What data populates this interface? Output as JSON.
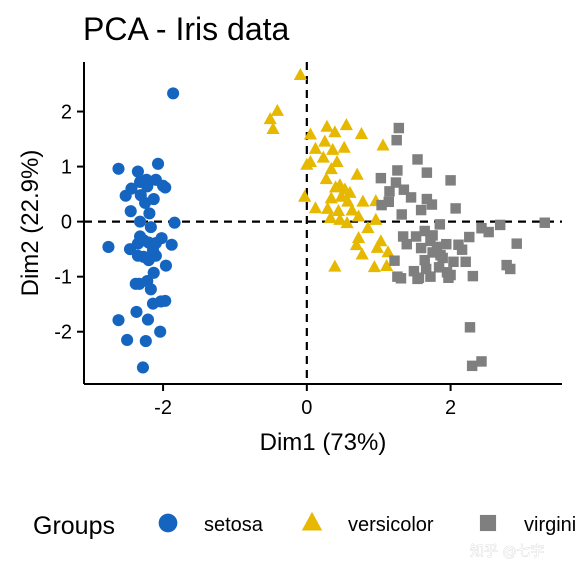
{
  "chart_data": {
    "type": "scatter",
    "title": "PCA - Iris data",
    "xlabel": "Dim1 (73%)",
    "ylabel": "Dim2 (22.9%)",
    "xlim": [
      -3.1,
      3.55
    ],
    "ylim": [
      -2.95,
      2.9
    ],
    "x_ticks": [
      -2,
      0,
      2
    ],
    "y_ticks": [
      -2,
      -1,
      0,
      1,
      2
    ],
    "x_tick_labels": [
      "-2",
      "0",
      "2"
    ],
    "y_tick_labels": [
      "-2",
      "-1",
      "0",
      "1",
      "2"
    ],
    "grid": false,
    "reference_lines": {
      "x": 0,
      "y": 0,
      "style": "dashed"
    },
    "legend": {
      "title": "Groups",
      "position": "bottom"
    },
    "series": [
      {
        "name": "setosa",
        "marker": "circle",
        "color": "#1565c0",
        "points": [
          [
            -1.86,
            2.33
          ],
          [
            -2.62,
            0.96
          ],
          [
            -2.07,
            1.05
          ],
          [
            -2.35,
            0.91
          ],
          [
            -2.32,
            0.72
          ],
          [
            -2.44,
            0.6
          ],
          [
            -2.23,
            0.76
          ],
          [
            -2.1,
            0.76
          ],
          [
            -2.0,
            0.65
          ],
          [
            -2.22,
            0.64
          ],
          [
            -1.97,
            0.62
          ],
          [
            -2.52,
            0.47
          ],
          [
            -2.31,
            0.48
          ],
          [
            -2.13,
            0.41
          ],
          [
            -2.25,
            0.34
          ],
          [
            -2.45,
            0.19
          ],
          [
            -2.19,
            0.15
          ],
          [
            -2.32,
            0.0
          ],
          [
            -2.17,
            -0.1
          ],
          [
            -1.84,
            -0.02
          ],
          [
            -2.32,
            -0.27
          ],
          [
            -2.27,
            -0.34
          ],
          [
            -2.2,
            -0.38
          ],
          [
            -2.1,
            -0.39
          ],
          [
            -2.02,
            -0.3
          ],
          [
            -2.14,
            -0.52
          ],
          [
            -1.88,
            -0.42
          ],
          [
            -2.35,
            -0.4
          ],
          [
            -2.46,
            -0.5
          ],
          [
            -2.76,
            -0.46
          ],
          [
            -2.35,
            -0.62
          ],
          [
            -2.27,
            -0.64
          ],
          [
            -2.1,
            -0.62
          ],
          [
            -2.2,
            -0.7
          ],
          [
            -1.96,
            -0.8
          ],
          [
            -2.13,
            -0.93
          ],
          [
            -2.22,
            -1.08
          ],
          [
            -2.38,
            -1.13
          ],
          [
            -2.33,
            -1.13
          ],
          [
            -2.17,
            -1.23
          ],
          [
            -1.97,
            -1.44
          ],
          [
            -2.14,
            -1.49
          ],
          [
            -2.03,
            -1.45
          ],
          [
            -2.37,
            -1.64
          ],
          [
            -2.21,
            -1.78
          ],
          [
            -2.62,
            -1.79
          ],
          [
            -2.5,
            -2.15
          ],
          [
            -2.28,
            -2.65
          ],
          [
            -2.24,
            -2.17
          ],
          [
            -2.04,
            -2.0
          ]
        ]
      },
      {
        "name": "versicolor",
        "marker": "triangle",
        "color": "#e6b800",
        "points": [
          [
            -0.09,
            2.66
          ],
          [
            -0.41,
            2.01
          ],
          [
            -0.51,
            1.86
          ],
          [
            -0.47,
            1.68
          ],
          [
            0.05,
            1.58
          ],
          [
            0.28,
            1.72
          ],
          [
            0.55,
            1.75
          ],
          [
            0.39,
            1.62
          ],
          [
            0.76,
            1.59
          ],
          [
            0.25,
            1.45
          ],
          [
            0.12,
            1.32
          ],
          [
            0.36,
            1.3
          ],
          [
            0.52,
            1.34
          ],
          [
            1.06,
            1.38
          ],
          [
            0.23,
            1.16
          ],
          [
            0.05,
            1.08
          ],
          [
            0.42,
            1.08
          ],
          [
            0.0,
            1.03
          ],
          [
            0.34,
            0.95
          ],
          [
            0.7,
            0.85
          ],
          [
            0.27,
            0.77
          ],
          [
            0.4,
            0.62
          ],
          [
            0.46,
            0.66
          ],
          [
            0.53,
            0.58
          ],
          [
            0.6,
            0.52
          ],
          [
            0.48,
            0.45
          ],
          [
            0.34,
            0.42
          ],
          [
            0.57,
            0.36
          ],
          [
            0.78,
            0.36
          ],
          [
            0.96,
            0.37
          ],
          [
            -0.03,
            0.45
          ],
          [
            0.12,
            0.24
          ],
          [
            0.29,
            0.23
          ],
          [
            0.44,
            0.19
          ],
          [
            0.63,
            0.2
          ],
          [
            0.72,
            0.09
          ],
          [
            0.33,
            0.06
          ],
          [
            0.46,
            0.03
          ],
          [
            0.56,
            -0.03
          ],
          [
            0.96,
            0.03
          ],
          [
            0.85,
            -0.12
          ],
          [
            0.72,
            -0.3
          ],
          [
            1.03,
            -0.36
          ],
          [
            0.98,
            -0.48
          ],
          [
            0.69,
            -0.43
          ],
          [
            0.77,
            -0.6
          ],
          [
            0.94,
            -0.83
          ],
          [
            1.13,
            -0.56
          ],
          [
            0.39,
            -0.82
          ],
          [
            1.11,
            -0.81
          ]
        ]
      },
      {
        "name": "virginica",
        "marker": "square",
        "color": "#7f7f7f",
        "points": [
          [
            1.28,
            1.7
          ],
          [
            1.25,
            1.48
          ],
          [
            1.54,
            1.13
          ],
          [
            1.26,
            0.93
          ],
          [
            1.03,
            0.79
          ],
          [
            1.67,
            0.89
          ],
          [
            2.0,
            0.75
          ],
          [
            1.24,
            0.71
          ],
          [
            1.35,
            0.58
          ],
          [
            1.45,
            0.44
          ],
          [
            1.74,
            0.31
          ],
          [
            1.15,
            0.55
          ],
          [
            1.04,
            0.3
          ],
          [
            1.14,
            0.36
          ],
          [
            1.32,
            0.13
          ],
          [
            1.67,
            0.41
          ],
          [
            2.07,
            0.24
          ],
          [
            1.59,
            0.21
          ],
          [
            1.85,
            -0.05
          ],
          [
            2.43,
            -0.12
          ],
          [
            2.69,
            -0.06
          ],
          [
            3.31,
            -0.02
          ],
          [
            2.53,
            -0.19
          ],
          [
            2.26,
            -0.28
          ],
          [
            1.64,
            -0.17
          ],
          [
            1.75,
            -0.25
          ],
          [
            1.52,
            -0.27
          ],
          [
            1.72,
            -0.35
          ],
          [
            1.34,
            -0.27
          ],
          [
            1.59,
            -0.48
          ],
          [
            1.81,
            -0.46
          ],
          [
            2.92,
            -0.4
          ],
          [
            1.94,
            -0.41
          ],
          [
            1.39,
            -0.41
          ],
          [
            1.75,
            -0.56
          ],
          [
            1.89,
            -0.66
          ],
          [
            2.16,
            -0.51
          ],
          [
            2.04,
            -0.73
          ],
          [
            1.64,
            -0.7
          ],
          [
            1.22,
            -0.71
          ],
          [
            1.49,
            -0.9
          ],
          [
            1.66,
            -0.86
          ],
          [
            1.95,
            -0.92
          ],
          [
            2.0,
            -0.97
          ],
          [
            1.56,
            -1.02
          ],
          [
            2.21,
            -0.73
          ],
          [
            2.78,
            -0.79
          ],
          [
            2.83,
            -0.86
          ],
          [
            1.26,
            -1.0
          ],
          [
            1.54,
            -1.04
          ],
          [
            1.72,
            -1.0
          ],
          [
            1.97,
            -1.02
          ],
          [
            1.31,
            -1.03
          ],
          [
            2.31,
            -0.99
          ],
          [
            1.84,
            -0.83
          ],
          [
            2.27,
            -1.92
          ],
          [
            2.3,
            -2.62
          ],
          [
            2.43,
            -2.54
          ],
          [
            1.86,
            -0.61
          ],
          [
            2.11,
            -0.42
          ]
        ]
      }
    ]
  },
  "watermark": "知乎 @七宇"
}
